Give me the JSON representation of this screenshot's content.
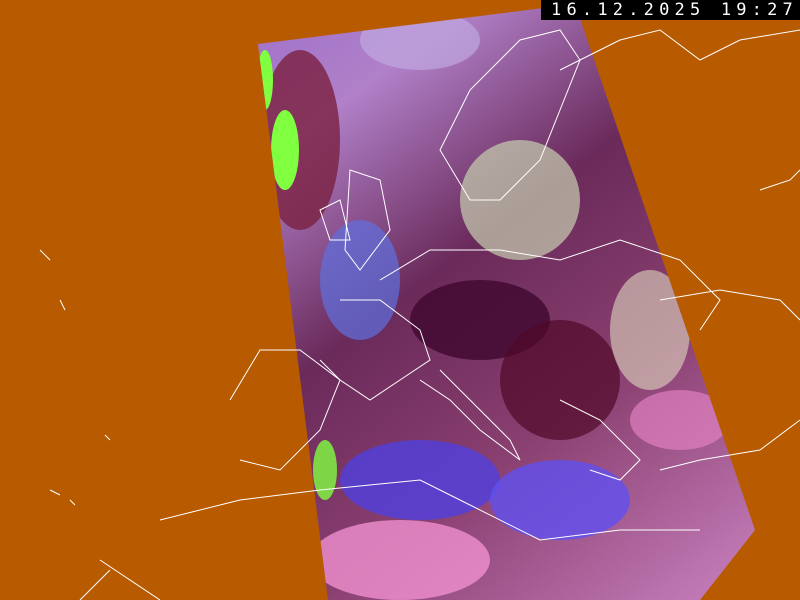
{
  "timestamp": "16.12.2025 19:27",
  "colors": {
    "background": "#b85a00",
    "borders": "#ffffff",
    "timestamp_bg": "#000000"
  }
}
